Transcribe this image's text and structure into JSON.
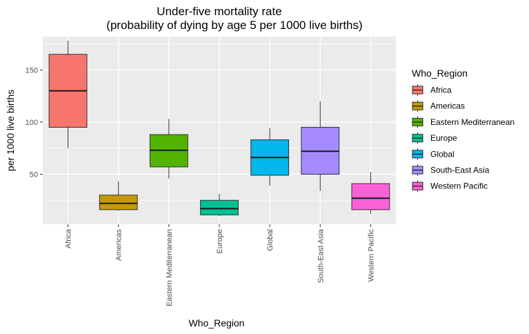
{
  "chart_data": {
    "type": "box",
    "title_lines": [
      "Under-five mortality rate",
      "(probability of dying by age 5 per 1000 live births)"
    ],
    "xlabel": "Who_Region",
    "ylabel": "per 1000 live births",
    "ylim": [
      2,
      182
    ],
    "yticks": [
      50,
      100,
      150
    ],
    "grid": true,
    "legend": {
      "title": "Who_Region",
      "position": "right"
    },
    "categories": [
      "Africa",
      "Americas",
      "Eastern Mediterranean",
      "Europe",
      "Global",
      "South-East Asia",
      "Western Pacific"
    ],
    "colors": [
      "#F8766D",
      "#C49A00",
      "#53B400",
      "#00C094",
      "#00B6EB",
      "#A58AFF",
      "#FB61D7"
    ],
    "boxes": [
      {
        "min": 75,
        "q1": 95,
        "median": 130,
        "q3": 165,
        "max": 178
      },
      {
        "min": 15,
        "q1": 16,
        "median": 22,
        "q3": 30,
        "max": 43
      },
      {
        "min": 46,
        "q1": 57,
        "median": 73,
        "q3": 88,
        "max": 103
      },
      {
        "min": 10,
        "q1": 11,
        "median": 17,
        "q3": 25,
        "max": 31
      },
      {
        "min": 39,
        "q1": 49,
        "median": 66,
        "q3": 83,
        "max": 94
      },
      {
        "min": 34,
        "q1": 50,
        "median": 72,
        "q3": 95,
        "max": 120
      },
      {
        "min": 12,
        "q1": 16,
        "median": 27,
        "q3": 41,
        "max": 52
      }
    ]
  }
}
